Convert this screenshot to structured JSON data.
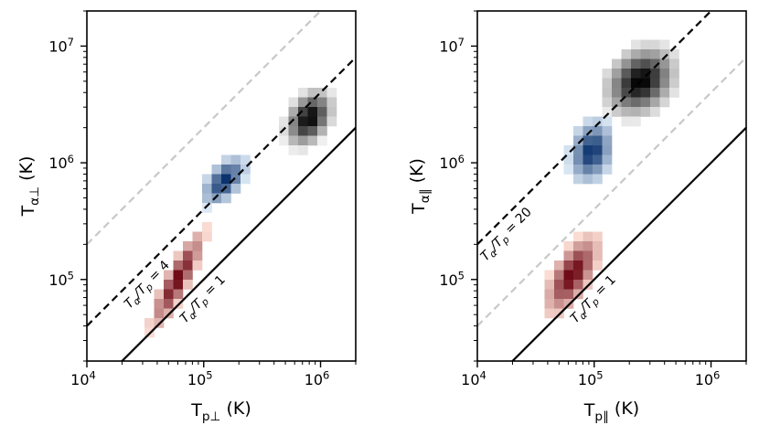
{
  "chart_data": [
    {
      "type": "heatmap",
      "panel": "left",
      "xlabel": "T_{p⊥} (K)",
      "ylabel": "T_{α⊥} (K)",
      "xscale": "log",
      "yscale": "log",
      "xlim": [
        10000,
        2000000
      ],
      "ylim": [
        20000,
        20000000
      ],
      "xticks": [
        {
          "value": 10000,
          "base": "10",
          "exp": "4"
        },
        {
          "value": 100000,
          "base": "10",
          "exp": "5"
        },
        {
          "value": 1000000,
          "base": "10",
          "exp": "6"
        }
      ],
      "yticks": [
        {
          "value": 100000,
          "base": "10",
          "exp": "5"
        },
        {
          "value": 1000000,
          "base": "10",
          "exp": "6"
        },
        {
          "value": 10000000,
          "base": "10",
          "exp": "7"
        }
      ],
      "reference_lines": [
        {
          "ratio": 1,
          "style": "solid",
          "color": "#000000",
          "label": "T_α/T_p = 1",
          "label_at_x": 60000
        },
        {
          "ratio": 4,
          "style": "dashed",
          "color": "#000000",
          "label": "T_α/T_p = 4",
          "label_at_x": 20000
        },
        {
          "ratio": 20,
          "style": "dashed",
          "color": "#c8c8c8",
          "label": ""
        }
      ],
      "distributions": [
        {
          "name": "red",
          "color_lo": "#fde0d6",
          "color_hi": "#67000d",
          "center": [
            60000,
            100000
          ],
          "sx": 0.11,
          "sy": 0.2,
          "rho": 0.88,
          "cells": 10
        },
        {
          "name": "blue",
          "color_lo": "#deebf7",
          "color_hi": "#08306b",
          "center": [
            150000,
            700000
          ],
          "sx": 0.09,
          "sy": 0.1,
          "rho": 0.55,
          "cells": 7
        },
        {
          "name": "black",
          "color_lo": "#f0f0f0",
          "color_hi": "#000000",
          "center": [
            800000,
            2400000
          ],
          "sx": 0.1,
          "sy": 0.12,
          "rho": 0.35,
          "cells": 8
        }
      ]
    },
    {
      "type": "heatmap",
      "panel": "right",
      "xlabel": "T_{p∥} (K)",
      "ylabel": "T_{α∥} (K)",
      "xscale": "log",
      "yscale": "log",
      "xlim": [
        10000,
        2000000
      ],
      "ylim": [
        20000,
        20000000
      ],
      "xticks": [
        {
          "value": 10000,
          "base": "10",
          "exp": "4"
        },
        {
          "value": 100000,
          "base": "10",
          "exp": "5"
        },
        {
          "value": 1000000,
          "base": "10",
          "exp": "6"
        }
      ],
      "yticks": [
        {
          "value": 100000,
          "base": "10",
          "exp": "5"
        },
        {
          "value": 1000000,
          "base": "10",
          "exp": "6"
        },
        {
          "value": 10000000,
          "base": "10",
          "exp": "7"
        }
      ],
      "reference_lines": [
        {
          "ratio": 1,
          "style": "solid",
          "color": "#000000",
          "label": "T_α/T_p = 1",
          "label_at_x": 60000
        },
        {
          "ratio": 20,
          "style": "dashed",
          "color": "#000000",
          "label": "T_α/T_p = 20",
          "label_at_x": 10200
        },
        {
          "ratio": 4,
          "style": "dashed",
          "color": "#c8c8c8",
          "label": ""
        }
      ],
      "distributions": [
        {
          "name": "red",
          "color_lo": "#fde0d6",
          "color_hi": "#67000d",
          "center": [
            65000,
            110000
          ],
          "sx": 0.11,
          "sy": 0.16,
          "rho": 0.65,
          "cells": 9
        },
        {
          "name": "blue",
          "color_lo": "#deebf7",
          "color_hi": "#08306b",
          "center": [
            95000,
            1250000
          ],
          "sx": 0.09,
          "sy": 0.13,
          "rho": 0.2,
          "cells": 8
        },
        {
          "name": "black",
          "color_lo": "#f0f0f0",
          "color_hi": "#000000",
          "center": [
            250000,
            5000000
          ],
          "sx": 0.15,
          "sy": 0.15,
          "rho": 0.25,
          "cells": 9
        }
      ]
    }
  ]
}
